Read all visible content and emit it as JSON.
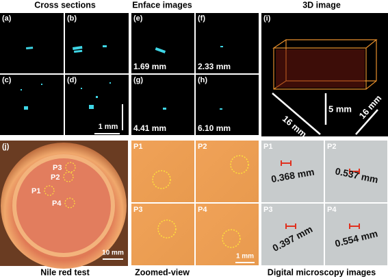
{
  "column_titles": [
    "Cross sections",
    "Enface images",
    "3D image"
  ],
  "bottom_titles": [
    "Nile red test",
    "Zoomed-view",
    "Digital microscopy images"
  ],
  "cross_sections": {
    "labels": [
      "(a)",
      "(b)",
      "(c)",
      "(d)"
    ],
    "scale_bar": "1 mm"
  },
  "enface": {
    "labels": [
      "(e)",
      "(f)",
      "(g)",
      "(h)"
    ],
    "depths": [
      "1.69 mm",
      "2.33 mm",
      "4.41 mm",
      "6.10 mm"
    ]
  },
  "image_3d": {
    "label": "(i)",
    "dimensions": [
      "16 mm",
      "5 mm",
      "16 mm"
    ]
  },
  "nile_red": {
    "label": "(j)",
    "points": [
      "P1",
      "P2",
      "P3",
      "P4"
    ],
    "scale_bar": "10 mm"
  },
  "zoomed": {
    "labels": [
      "P1",
      "P2",
      "P3",
      "P4"
    ],
    "scale_bar": "1 mm"
  },
  "digital": {
    "labels": [
      "P1",
      "P2",
      "P3",
      "P4"
    ],
    "measurements": [
      "0.368 mm",
      "0.537 mm",
      "0.397 mm",
      "0.554 mm"
    ]
  }
}
